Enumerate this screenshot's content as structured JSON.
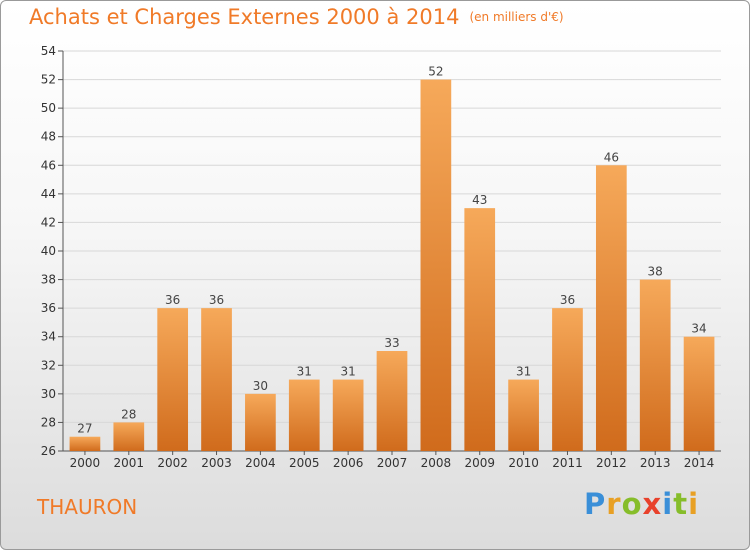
{
  "header": {
    "title": "Achats et Charges Externes 2000 à 2014",
    "subtitle": "(en milliers d'€)"
  },
  "footer": {
    "commune": "THAURON",
    "brand_letters": [
      {
        "char": "P",
        "color": "#3a8fd8"
      },
      {
        "char": "r",
        "color": "#e8a024"
      },
      {
        "char": "o",
        "color": "#86bd2a"
      },
      {
        "char": "x",
        "color": "#e8412b"
      },
      {
        "char": "i",
        "color": "#3a8fd8"
      },
      {
        "char": "t",
        "color": "#86bd2a"
      },
      {
        "char": "i",
        "color": "#e8a024"
      }
    ]
  },
  "colors": {
    "title": "#f07a28",
    "bar_light": "#f6a95a",
    "bar_dark": "#d06b1c",
    "grid": "#d8d8d8"
  },
  "chart_data": {
    "type": "bar",
    "title": "Achats et Charges Externes 2000 à 2014",
    "subtitle": "(en milliers d'€)",
    "xlabel": "",
    "ylabel": "",
    "categories": [
      "2000",
      "2001",
      "2002",
      "2003",
      "2004",
      "2005",
      "2006",
      "2007",
      "2008",
      "2009",
      "2010",
      "2011",
      "2012",
      "2013",
      "2014"
    ],
    "values": [
      27,
      28,
      36,
      36,
      30,
      31,
      31,
      33,
      52,
      43,
      31,
      36,
      46,
      38,
      34
    ],
    "ylim": [
      26,
      54
    ],
    "yticks": [
      26,
      28,
      30,
      32,
      34,
      36,
      38,
      40,
      42,
      44,
      46,
      48,
      50,
      52,
      54
    ],
    "grid": true,
    "legend": "none"
  }
}
